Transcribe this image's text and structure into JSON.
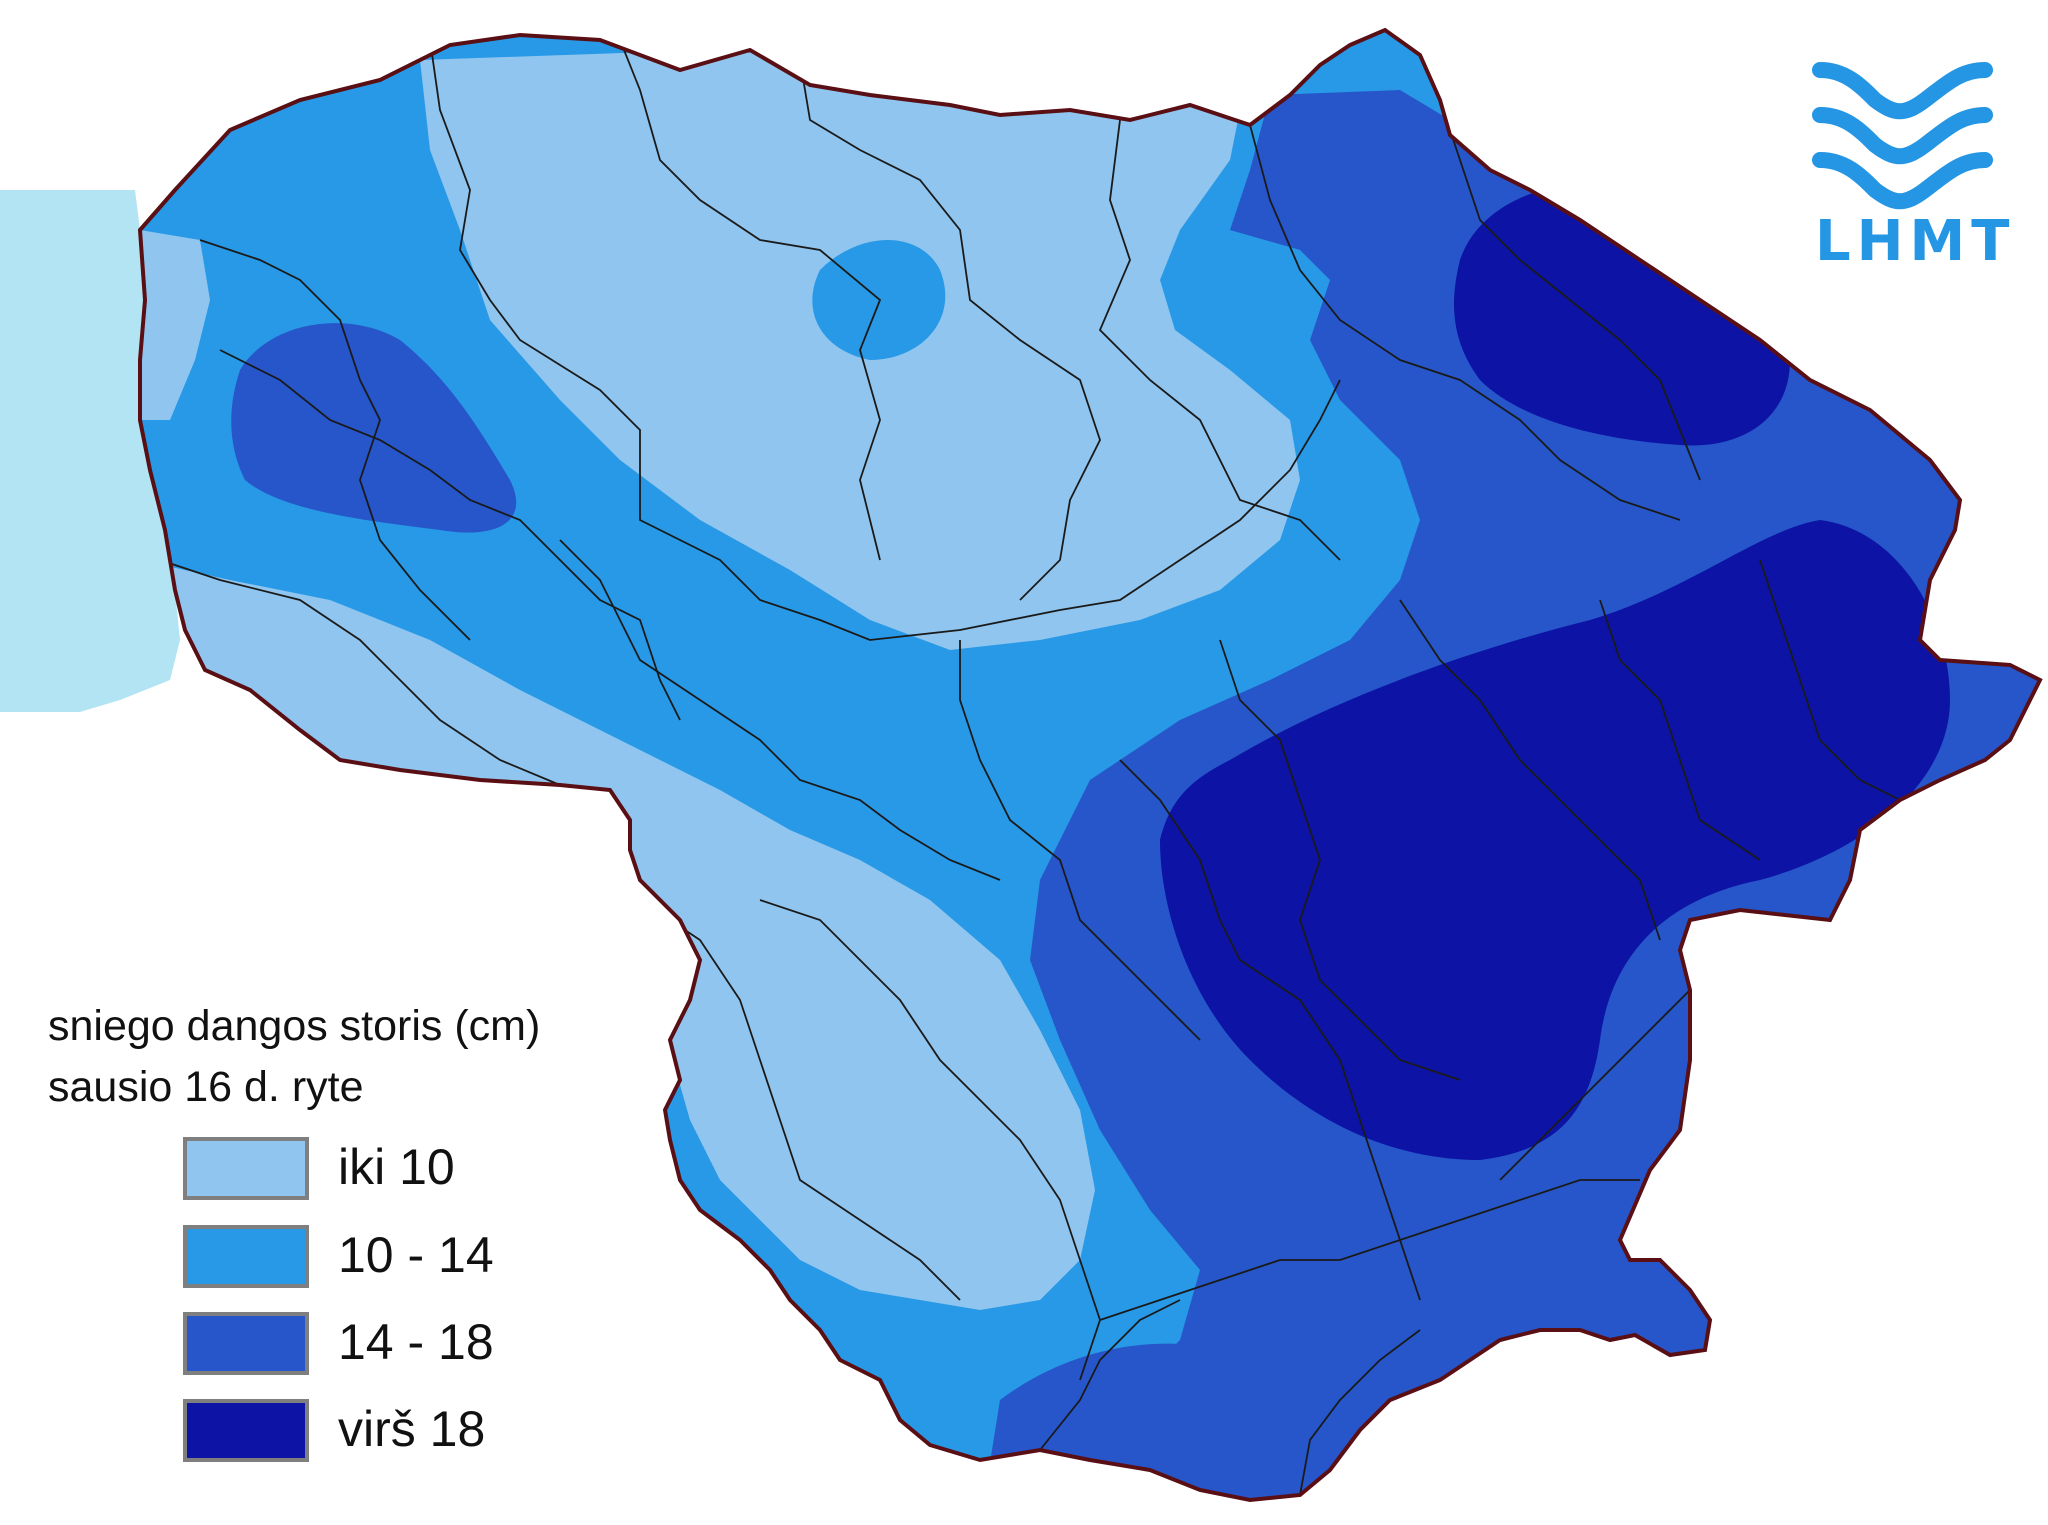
{
  "map": {
    "title_line1": "sniego dangos storis (cm)",
    "title_line2": "sausio 16 d. ryte"
  },
  "legend": {
    "items": [
      {
        "label": "iki 10",
        "color": "#8fc5ee"
      },
      {
        "label": "10 - 14",
        "color": "#2899e6"
      },
      {
        "label": "14 - 18",
        "color": "#2656c9"
      },
      {
        "label": "virš 18",
        "color": "#0c13a5"
      }
    ]
  },
  "colors": {
    "sea": "#b2e4f3",
    "border": "#5a0f14",
    "district_lines": "#1a1a1a",
    "logo": "#2496e4"
  },
  "logo": {
    "text": "LHMT"
  }
}
